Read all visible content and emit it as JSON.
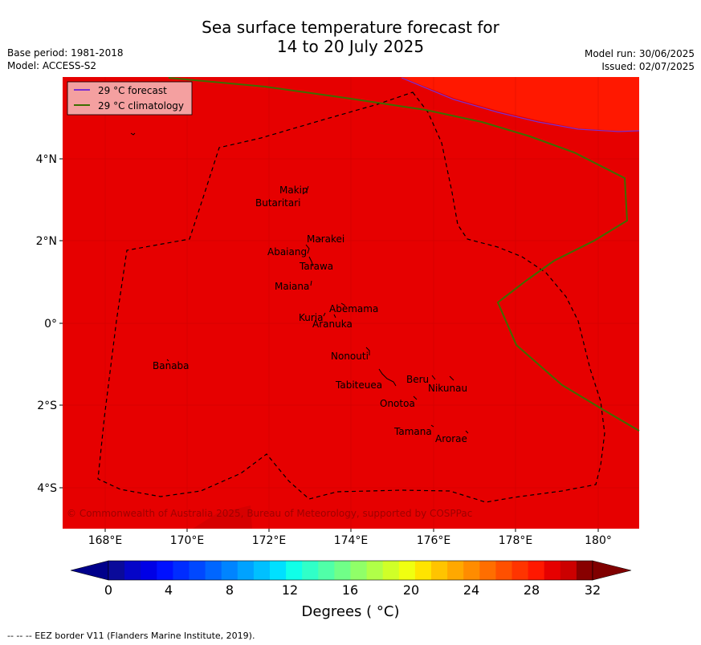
{
  "title_line1": "Sea surface temperature forecast for",
  "title_line2": "14 to 20 July 2025",
  "base_period": "Base period: 1981-2018",
  "model": "Model: ACCESS-S2",
  "model_run": "Model run: 30/06/2025",
  "issued": "Issued: 02/07/2025",
  "legend": {
    "forecast": "29 °C  forecast",
    "climatology": "29 °C  climatology"
  },
  "copyright": "© Commonwealth of Australia 2025, Bureau of Meteorology, supported by COSPPac",
  "lat_ticks": [
    "4°N",
    "2°N",
    "0°",
    "2°S",
    "4°S"
  ],
  "lon_ticks": [
    "168°E",
    "170°E",
    "172°E",
    "174°E",
    "176°E",
    "178°E",
    "180°"
  ],
  "places": [
    {
      "name": "Makin"
    },
    {
      "name": "Butaritari"
    },
    {
      "name": "Marakei"
    },
    {
      "name": "Abaiang"
    },
    {
      "name": "Tarawa"
    },
    {
      "name": "Maiana"
    },
    {
      "name": "Abemama"
    },
    {
      "name": "Kuria"
    },
    {
      "name": "Aranuka"
    },
    {
      "name": "Nonouti"
    },
    {
      "name": "Banaba"
    },
    {
      "name": "Beru"
    },
    {
      "name": "Tabiteuea"
    },
    {
      "name": "Nikunau"
    },
    {
      "name": "Onotoa"
    },
    {
      "name": "Tamana"
    },
    {
      "name": "Arorae"
    }
  ],
  "colorbar": {
    "ticks": [
      "0",
      "4",
      "8",
      "12",
      "16",
      "20",
      "24",
      "28",
      "32"
    ],
    "label": "Degrees ( °C)",
    "colors": [
      "#0a0a9a",
      "#0505c8",
      "#0000e6",
      "#0010ff",
      "#002cff",
      "#0048ff",
      "#0066ff",
      "#0084ff",
      "#00a2ff",
      "#00c0ff",
      "#00e0ff",
      "#10ffe8",
      "#30ffc8",
      "#50ffa8",
      "#70ff88",
      "#90ff68",
      "#b0ff48",
      "#d0ff28",
      "#f0ff10",
      "#ffe400",
      "#ffc400",
      "#ffa800",
      "#ff8c00",
      "#ff6e00",
      "#ff5000",
      "#ff3400",
      "#ff1800",
      "#e60000",
      "#cc0000",
      "#880000"
    ],
    "under_color": "#00008b",
    "over_color": "#800000"
  },
  "map_colors": {
    "main": "#e60000",
    "warm": "#ff1800",
    "dark": "#cc0000",
    "forecast_line": "#7b2fd0",
    "climatology_line": "#3d6e00"
  },
  "footnote": "--  --  -- EEZ border V11 (Flanders Marine Institute, 2019)."
}
